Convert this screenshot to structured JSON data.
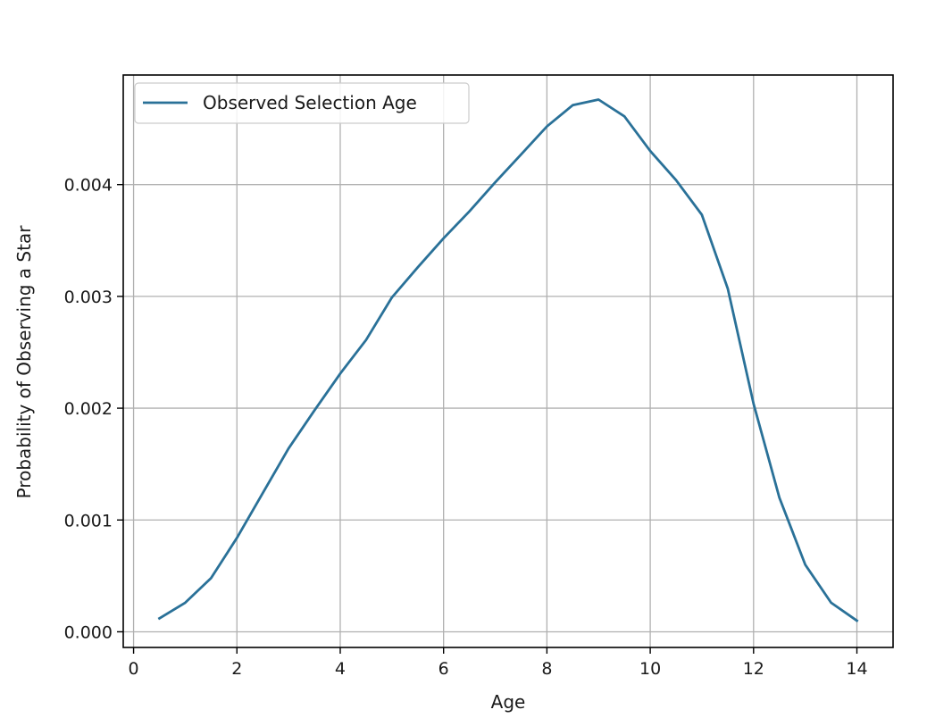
{
  "chart_data": {
    "type": "line",
    "title": "",
    "xlabel": "Age",
    "ylabel": "Probability of Observing a Star",
    "xlim": [
      -0.2,
      14.7
    ],
    "ylim": [
      -0.00014,
      0.00498
    ],
    "grid": true,
    "legend_position": "upper-left",
    "x_ticks": [
      0,
      2,
      4,
      6,
      8,
      10,
      12,
      14
    ],
    "x_tick_labels": [
      "0",
      "2",
      "4",
      "6",
      "8",
      "10",
      "12",
      "14"
    ],
    "y_ticks": [
      0.0,
      0.001,
      0.002,
      0.003,
      0.004
    ],
    "y_tick_labels": [
      "0.000",
      "0.001",
      "0.002",
      "0.003",
      "0.004"
    ],
    "series": [
      {
        "name": "Observed Selection Age",
        "color": "#2a7198",
        "x": [
          0.5,
          1.0,
          1.5,
          2.0,
          2.5,
          3.0,
          3.5,
          4.0,
          4.5,
          5.0,
          5.5,
          6.0,
          6.5,
          7.0,
          7.5,
          8.0,
          8.5,
          9.0,
          9.5,
          10.0,
          10.5,
          11.0,
          11.5,
          12.0,
          12.5,
          13.0,
          13.5,
          14.0
        ],
        "y": [
          0.00012,
          0.00026,
          0.00048,
          0.00084,
          0.00124,
          0.00164,
          0.00198,
          0.00231,
          0.00261,
          0.00299,
          0.00326,
          0.00352,
          0.00376,
          0.00402,
          0.00427,
          0.00452,
          0.00471,
          0.00476,
          0.00461,
          0.0043,
          0.00404,
          0.00373,
          0.00307,
          0.00204,
          0.0012,
          0.0006,
          0.00026,
          0.0001
        ]
      }
    ]
  }
}
